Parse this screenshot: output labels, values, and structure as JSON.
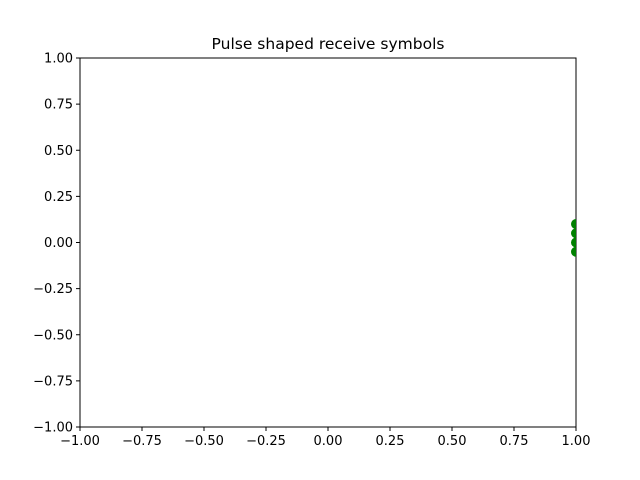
{
  "chart_data": {
    "type": "scatter",
    "title": "Pulse shaped receive symbols",
    "xlabel": "",
    "ylabel": "",
    "xlim": [
      -1.0,
      1.0
    ],
    "ylim": [
      -1.0,
      1.0
    ],
    "grid": false,
    "x_ticks": [
      -1.0,
      -0.75,
      -0.5,
      -0.25,
      0.0,
      0.25,
      0.5,
      0.75,
      1.0
    ],
    "y_ticks": [
      -1.0,
      -0.75,
      -0.5,
      -0.25,
      0.0,
      0.25,
      0.5,
      0.75,
      1.0
    ],
    "x_tick_labels": [
      "−1.00",
      "−0.75",
      "−0.50",
      "−0.25",
      "0.00",
      "0.25",
      "0.50",
      "0.75",
      "1.00"
    ],
    "y_tick_labels": [
      "−1.00",
      "−0.75",
      "−0.50",
      "−0.25",
      "0.00",
      "0.25",
      "0.50",
      "0.75",
      "1.00"
    ],
    "series": [
      {
        "color": "#008000",
        "points": [
          {
            "x": 1.0,
            "y": 0.1
          },
          {
            "x": 1.0,
            "y": 0.05
          },
          {
            "x": 1.0,
            "y": 0.0
          },
          {
            "x": 1.0,
            "y": -0.05
          }
        ]
      }
    ]
  }
}
